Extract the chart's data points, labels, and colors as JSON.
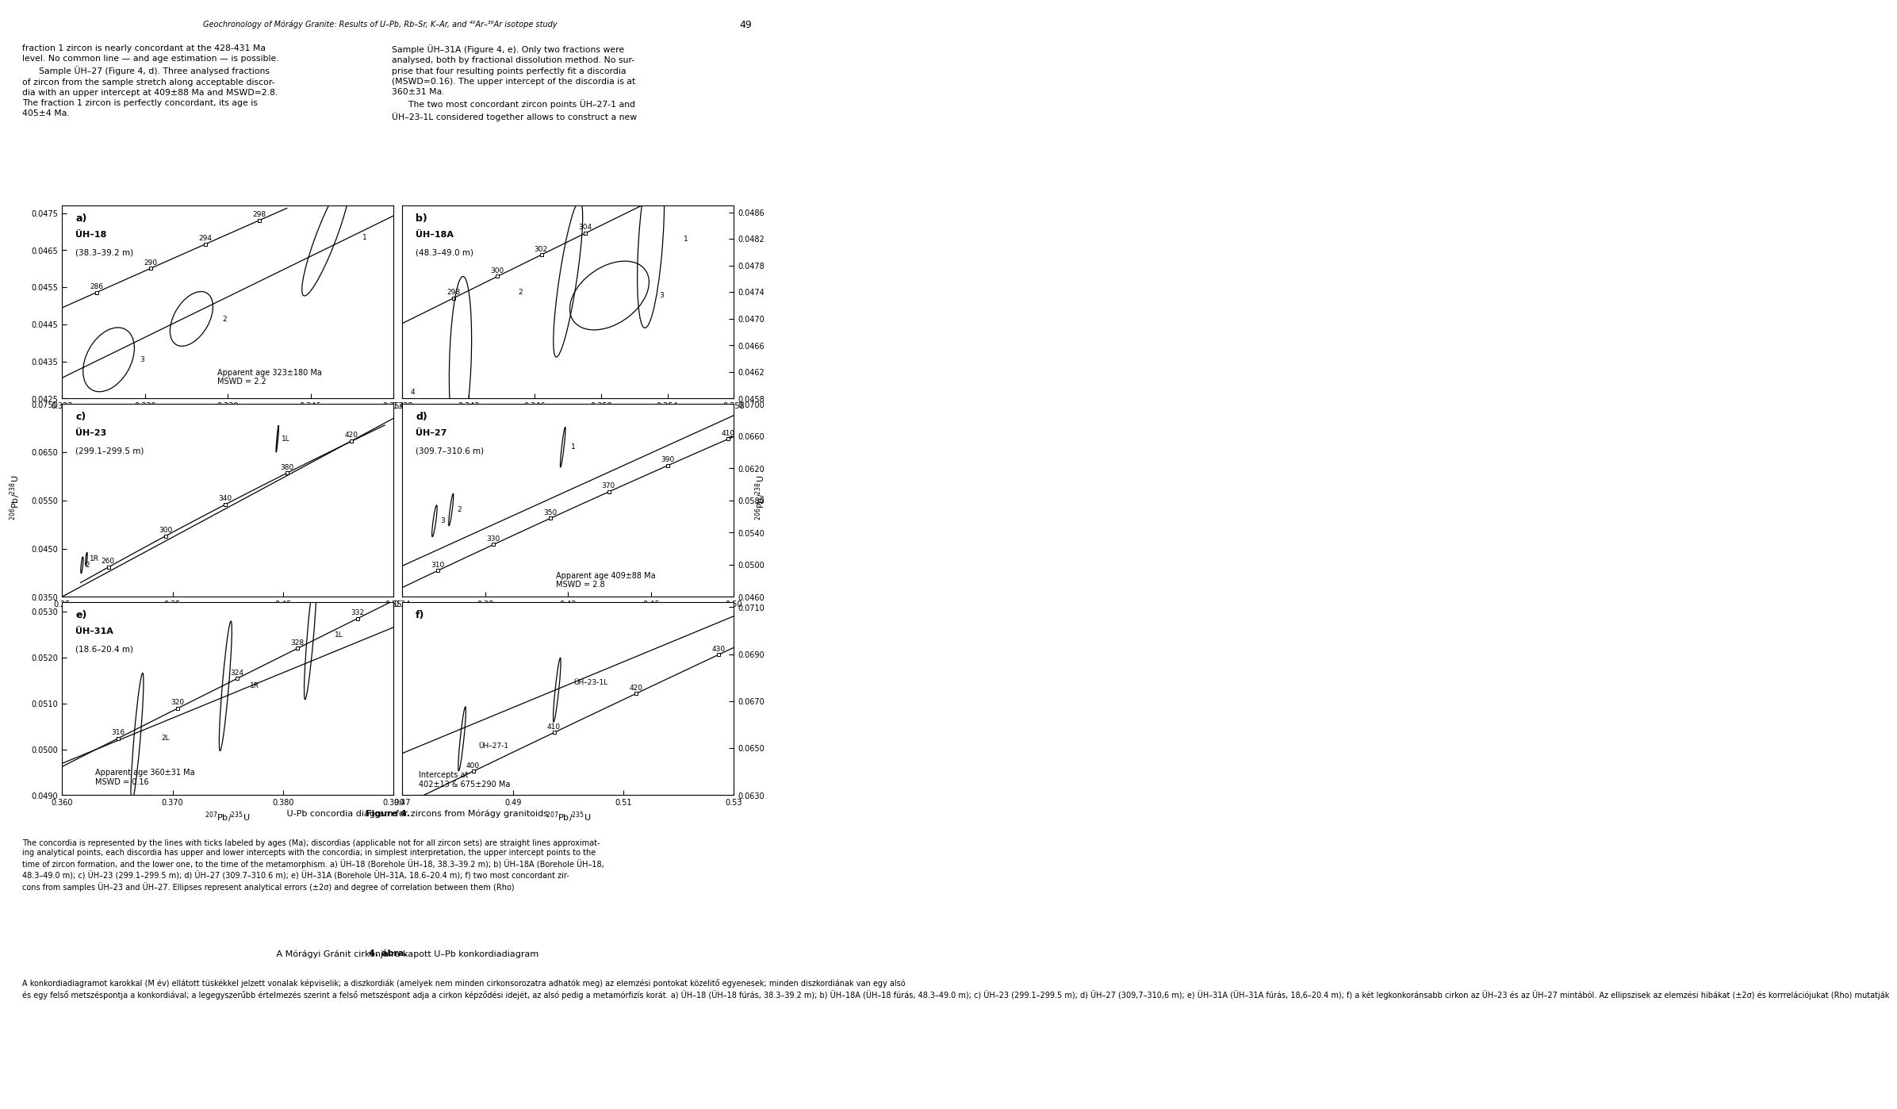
{
  "title_header": "Geochronology of Mórágy Granite: Results of U–Pb, Rb–Sr, K–Ar, and ⁴⁰Ar–³⁹Ar isotope study",
  "page_number": "49",
  "left_col_text": [
    "fraction 1 zircon is nearly concordant at the 428-431 Ma",
    "level. No common line — and age estimation — is possible.",
    "      Sample ÜH–27 (Figure 4, d). Three analysed fractions",
    "of zircon from the sample stretch along acceptable discor-",
    "dia with an upper intercept at 409±88 Ma and MSWD=2.8.",
    "The fraction 1 zircon is perfectly concordant, its age is",
    "405±4 Ma."
  ],
  "right_col_text": [
    "Sample ÜH–31A (Figure 4, e). Only two fractions were",
    "analysed, both by fractional dissolution method. No sur-",
    "prise that four resulting points perfectly fit a discordia",
    "(MSWD=0.16). The upper intercept of the discordia is at",
    "360±31 Ma.",
    "      The two most concordant zircon points ÜH–27-1 and",
    "ÜH–23-1L considered together allows to construct a new"
  ],
  "figure_caption_bold": "Figure 4.",
  "figure_caption_normal": " U-Pb concordia diagram for zircons from Mórágy granitoids",
  "caption_line1": "The concordia is represented by the lines with ticks labeled by ages (Ma); discordias (applicable not for all zircon sets) are straight lines approximat-",
  "caption_line2": "ing analytical points, each discordia has upper and lower intercepts with the concordia; in simplest interpretation, the upper intercept points to the",
  "caption_line3": "time of zircon formation, and the lower one, to the time of the metamorphism. a) ÜH–18 (Borehole ÜH–18, 38.3–39.2 m); b) ÜH–18A (Borehole ÜH–18,",
  "caption_line4": "48.3–49.0 m); c) ÜH–23 (299.1–299.5 m); d) ÜH–27 (309.7–310.6 m); e) ÜH–31A (Borehole ÜH–31A, 18.6–20.4 m); f) two most concordant zir-",
  "caption_line5": "cons from samples ÜH–23 and ÜH–27. Ellipses represent analytical errors (±2σ) and degree of correlation between them (Rho)",
  "caption2_bold": "4. ábra.",
  "caption2_normal": " A Mórágyi Gránit cirkonjaira kapott U–Pb konkordiadiagram",
  "caption3_line1": "A konkordiadiagramot karokkal (M év) ellátott tüskékkel jelzett vonalak képviselik; a diszkordiák (amelyek nem minden cirkonsorozatra adhatók meg) az elemzési pontokat közelitő egyenesek; minden diszkordiának van egy alsó",
  "caption3_line2": "és egy felső metszéspontja a konkordiával; a legegyszerűbb értelmezés szerint a felső metszéspont adja a cirkon képződési idejét, az alsó pedig a metamórfizís korát. a) ÜH–18 (ÜH–18 fúrás, 38.3–39.2 m); b) ÜH–18A (ÜH–18 fúrás, 48.3–49.0 m); c) ÜH–23 (299.1–299.5 m); d) ÜH–27 (309,7–310,6 m); e) ÜH–31A (ÜH–31A fúrás, 18,6–20.4 m); f) a két legkonkoránsabb cirkon az ÜH–23 és az ÜH–27 mintából. Az ellipszisek az elemzési hibákat (±2σ) és korrrelációjukat (Rho) mutatják"
}
